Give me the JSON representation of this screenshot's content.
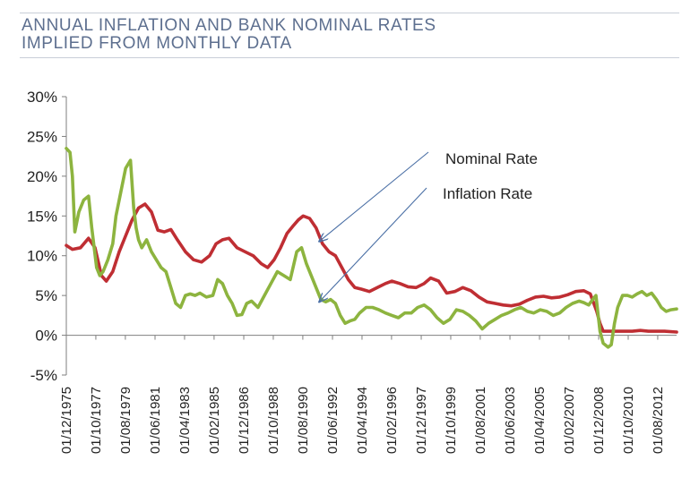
{
  "header": {
    "title_line1": "ANNUAL INFLATION AND BANK NOMINAL RATES",
    "title_line2": "IMPLIED FROM MONTHLY DATA"
  },
  "colors": {
    "title": "#5d6f8f",
    "nominal": "#bf2e33",
    "inflation": "#8db43f",
    "axis": "#7f7f7f",
    "arrow": "#4a6fa5"
  },
  "chart_data": {
    "type": "line",
    "title": "ANNUAL INFLATION AND BANK NOMINAL RATES IMPLIED FROM MONTHLY DATA",
    "xlabel": "",
    "ylabel": "",
    "ylim": [
      -5,
      30
    ],
    "xlim": [
      1975.92,
      2013.75
    ],
    "grid": false,
    "y_ticks": [
      {
        "value": 30,
        "label": "30%"
      },
      {
        "value": 25,
        "label": "25%"
      },
      {
        "value": 20,
        "label": "20%"
      },
      {
        "value": 15,
        "label": "15%"
      },
      {
        "value": 10,
        "label": "10%"
      },
      {
        "value": 5,
        "label": "5%"
      },
      {
        "value": 0,
        "label": "0%"
      },
      {
        "value": -5,
        "label": "-5%"
      }
    ],
    "x_ticks": [
      {
        "value": 1975.92,
        "label": "01/12/1975"
      },
      {
        "value": 1977.75,
        "label": "01/10/1977"
      },
      {
        "value": 1979.58,
        "label": "01/08/1979"
      },
      {
        "value": 1981.42,
        "label": "01/06/1981"
      },
      {
        "value": 1983.25,
        "label": "01/04/1983"
      },
      {
        "value": 1985.08,
        "label": "01/02/1985"
      },
      {
        "value": 1986.92,
        "label": "01/12/1986"
      },
      {
        "value": 1988.75,
        "label": "01/10/1988"
      },
      {
        "value": 1990.58,
        "label": "01/08/1990"
      },
      {
        "value": 1992.42,
        "label": "01/06/1992"
      },
      {
        "value": 1994.25,
        "label": "01/04/1994"
      },
      {
        "value": 1996.08,
        "label": "01/02/1996"
      },
      {
        "value": 1997.92,
        "label": "01/12/1997"
      },
      {
        "value": 1999.75,
        "label": "01/10/1999"
      },
      {
        "value": 2001.58,
        "label": "01/08/2001"
      },
      {
        "value": 2003.42,
        "label": "01/06/2003"
      },
      {
        "value": 2005.25,
        "label": "01/04/2005"
      },
      {
        "value": 2007.08,
        "label": "01/02/2007"
      },
      {
        "value": 2008.92,
        "label": "01/12/2008"
      },
      {
        "value": 2010.75,
        "label": "01/10/2010"
      },
      {
        "value": 2012.58,
        "label": "01/08/2012"
      }
    ],
    "series": [
      {
        "name": "Nominal Rate",
        "x": [
          1975.92,
          1976.3,
          1976.8,
          1977.3,
          1977.7,
          1978.1,
          1978.4,
          1978.8,
          1979.2,
          1979.6,
          1980.0,
          1980.4,
          1980.8,
          1981.2,
          1981.6,
          1982.0,
          1982.4,
          1982.8,
          1983.3,
          1983.8,
          1984.3,
          1984.8,
          1985.2,
          1985.6,
          1986.0,
          1986.5,
          1987.0,
          1987.5,
          1988.0,
          1988.4,
          1988.8,
          1989.2,
          1989.6,
          1990.0,
          1990.3,
          1990.6,
          1991.0,
          1991.4,
          1991.8,
          1992.2,
          1992.6,
          1993.0,
          1993.4,
          1993.8,
          1994.2,
          1994.7,
          1995.2,
          1995.7,
          1996.1,
          1996.6,
          1997.1,
          1997.6,
          1998.1,
          1998.5,
          1999.0,
          1999.5,
          2000.0,
          2000.5,
          2001.0,
          2001.5,
          2002.0,
          2002.5,
          2003.0,
          2003.5,
          2004.0,
          2004.5,
          2005.0,
          2005.5,
          2006.0,
          2006.5,
          2007.0,
          2007.5,
          2008.0,
          2008.4,
          2008.8,
          2009.0,
          2009.2,
          2009.4,
          2009.6,
          2010.0,
          2010.5,
          2011.0,
          2011.5,
          2012.0,
          2012.5,
          2013.0,
          2013.75
        ],
        "values": [
          11.3,
          10.8,
          11.0,
          12.2,
          11.0,
          7.5,
          6.8,
          8.0,
          10.5,
          12.5,
          14.5,
          16.0,
          16.5,
          15.5,
          13.2,
          13.0,
          13.3,
          12.0,
          10.5,
          9.5,
          9.2,
          10.0,
          11.5,
          12.0,
          12.2,
          11.0,
          10.5,
          10.0,
          9.0,
          8.5,
          9.5,
          11.0,
          12.8,
          13.8,
          14.5,
          15.0,
          14.7,
          13.5,
          11.5,
          10.5,
          10.0,
          8.5,
          7.0,
          6.0,
          5.8,
          5.5,
          6.0,
          6.5,
          6.8,
          6.5,
          6.1,
          6.0,
          6.5,
          7.2,
          6.8,
          5.3,
          5.5,
          6.0,
          5.6,
          4.8,
          4.2,
          4.0,
          3.8,
          3.7,
          3.9,
          4.4,
          4.8,
          4.9,
          4.7,
          4.8,
          5.1,
          5.5,
          5.6,
          5.2,
          3.0,
          1.5,
          0.5,
          0.5,
          0.5,
          0.5,
          0.5,
          0.5,
          0.6,
          0.5,
          0.5,
          0.5,
          0.4
        ]
      },
      {
        "name": "Inflation Rate",
        "x": [
          1975.92,
          1976.15,
          1976.3,
          1976.45,
          1976.7,
          1977.0,
          1977.3,
          1977.5,
          1977.8,
          1978.0,
          1978.2,
          1978.5,
          1978.8,
          1979.0,
          1979.3,
          1979.6,
          1979.9,
          1980.1,
          1980.25,
          1980.4,
          1980.6,
          1980.9,
          1981.2,
          1981.5,
          1981.8,
          1982.1,
          1982.4,
          1982.7,
          1983.0,
          1983.3,
          1983.6,
          1983.9,
          1984.2,
          1984.6,
          1985.0,
          1985.3,
          1985.6,
          1985.9,
          1986.2,
          1986.5,
          1986.8,
          1987.1,
          1987.4,
          1987.8,
          1988.2,
          1988.6,
          1989.0,
          1989.4,
          1989.8,
          1990.2,
          1990.5,
          1990.8,
          1991.1,
          1991.4,
          1991.7,
          1992.0,
          1992.3,
          1992.6,
          1992.9,
          1993.2,
          1993.5,
          1993.8,
          1994.1,
          1994.5,
          1994.9,
          1995.3,
          1995.7,
          1996.1,
          1996.5,
          1996.9,
          1997.3,
          1997.7,
          1998.1,
          1998.5,
          1998.9,
          1999.3,
          1999.7,
          2000.1,
          2000.5,
          2000.9,
          2001.3,
          2001.7,
          2002.1,
          2002.5,
          2002.9,
          2003.3,
          2003.7,
          2004.1,
          2004.5,
          2004.9,
          2005.3,
          2005.7,
          2006.1,
          2006.5,
          2006.9,
          2007.3,
          2007.7,
          2008.0,
          2008.3,
          2008.55,
          2008.75,
          2009.0,
          2009.2,
          2009.5,
          2009.7,
          2009.9,
          2010.1,
          2010.4,
          2010.7,
          2011.0,
          2011.3,
          2011.6,
          2011.9,
          2012.2,
          2012.5,
          2012.8,
          2013.1,
          2013.4,
          2013.75
        ],
        "values": [
          23.5,
          23.0,
          20.0,
          13.0,
          15.5,
          17.0,
          17.5,
          13.5,
          8.5,
          7.5,
          8.0,
          9.5,
          11.5,
          15.0,
          18.0,
          21.0,
          22.0,
          16.0,
          13.5,
          12.0,
          11.0,
          12.0,
          10.5,
          9.5,
          8.5,
          8.0,
          6.0,
          4.0,
          3.5,
          5.0,
          5.2,
          5.0,
          5.3,
          4.8,
          5.0,
          7.0,
          6.5,
          5.0,
          4.0,
          2.5,
          2.6,
          4.0,
          4.3,
          3.5,
          5.0,
          6.5,
          8.0,
          7.5,
          7.0,
          10.5,
          11.0,
          9.0,
          7.5,
          6.0,
          4.5,
          4.2,
          4.5,
          4.0,
          2.5,
          1.5,
          1.8,
          2.0,
          2.8,
          3.5,
          3.5,
          3.2,
          2.8,
          2.5,
          2.2,
          2.8,
          2.8,
          3.5,
          3.8,
          3.2,
          2.2,
          1.5,
          2.0,
          3.2,
          3.0,
          2.5,
          1.8,
          0.8,
          1.5,
          2.0,
          2.5,
          2.8,
          3.2,
          3.5,
          3.0,
          2.8,
          3.2,
          3.0,
          2.5,
          2.8,
          3.5,
          4.0,
          4.3,
          4.1,
          3.8,
          4.5,
          5.0,
          0.5,
          -1.0,
          -1.5,
          -1.2,
          1.5,
          3.5,
          5.0,
          5.0,
          4.8,
          5.2,
          5.5,
          5.0,
          5.3,
          4.5,
          3.5,
          3.0,
          3.2,
          3.3
        ]
      }
    ],
    "annotations": [
      {
        "text": "Nominal Rate",
        "arrow_to_x": 1991.6,
        "arrow_to_y": 11.8
      },
      {
        "text": "Inflation Rate",
        "arrow_to_x": 1991.6,
        "arrow_to_y": 4.2
      }
    ]
  }
}
